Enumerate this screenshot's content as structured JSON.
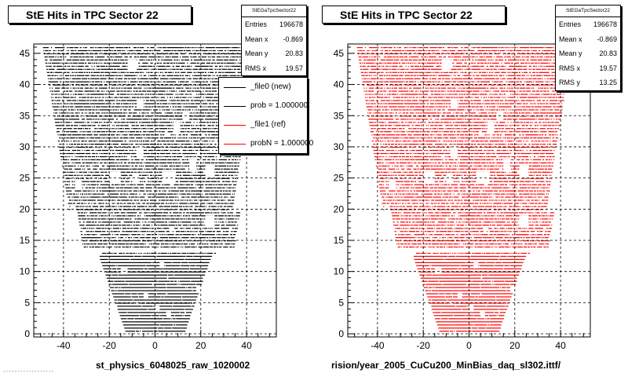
{
  "pads": [
    {
      "title": "StE Hits in TPC Sector 22",
      "stats": {
        "header": "StEGaTpcSector22",
        "rows": [
          {
            "label": "Entries",
            "value": "196678"
          },
          {
            "label": "Mean x",
            "value": "-0.869"
          },
          {
            "label": "Mean y",
            "value": "20.83"
          },
          {
            "label": "RMS x",
            "value": "19.57"
          }
        ]
      },
      "legend": [
        {
          "text": "_file0 (new)",
          "color": "#000000"
        },
        {
          "text": "prob = 1.000000",
          "color": "#000000"
        },
        {
          "text": "_file1 (ref)",
          "color": "#ff0000"
        },
        {
          "text": "probN = 1.000000",
          "color": "#ff0000"
        }
      ],
      "file_label": "st_physics_6048025_raw_1020002"
    },
    {
      "title": "StE Hits in TPC Sector 22",
      "stats": {
        "header": "StEGaTpcSector22",
        "rows": [
          {
            "label": "Entries",
            "value": "196678"
          },
          {
            "label": "Mean x",
            "value": "-0.869"
          },
          {
            "label": "Mean y",
            "value": "20.83"
          },
          {
            "label": "RMS x",
            "value": "19.57"
          },
          {
            "label": "RMS y",
            "value": "13.25"
          }
        ]
      },
      "file_label": "rision/year_2005_CuCu200_MinBias_daq_sl302.ittf/"
    }
  ],
  "chart_data": [
    {
      "type": "scatter",
      "title": "StE Hits in TPC Sector 22",
      "color": "#000000",
      "xlim": [
        -53,
        53
      ],
      "ylim": [
        -0.5,
        46.5
      ],
      "xticks": [
        -40,
        -20,
        0,
        20,
        40
      ],
      "yticks": [
        0,
        5,
        10,
        15,
        20,
        25,
        30,
        35,
        40,
        45
      ],
      "grid": true,
      "legend_position": "top-right",
      "entries": 196678,
      "mean_x": -0.869,
      "mean_y": 20.83,
      "rms_x": 19.57,
      "rms_y": 13.25,
      "row_half_widths": [
        {
          "y": 0.5,
          "half_width": 13
        },
        {
          "y": 13,
          "half_width": 25
        },
        {
          "y": 14,
          "half_width": 33
        },
        {
          "y": 46,
          "half_width": 47
        }
      ],
      "gap_row_y": 13.4
    },
    {
      "type": "scatter",
      "title": "StE Hits in TPC Sector 22",
      "color": "#ff0000",
      "xlim": [
        -53,
        53
      ],
      "ylim": [
        -0.5,
        46.5
      ],
      "xticks": [
        -40,
        -20,
        0,
        20,
        40
      ],
      "yticks": [
        0,
        5,
        10,
        15,
        20,
        25,
        30,
        35,
        40,
        45
      ],
      "grid": true,
      "legend_position": "none",
      "entries": 196678,
      "mean_x": -0.869,
      "mean_y": 20.83,
      "rms_x": 19.57,
      "rms_y": 13.25,
      "row_half_widths": [
        {
          "y": 0.5,
          "half_width": 13
        },
        {
          "y": 13,
          "half_width": 25
        },
        {
          "y": 14,
          "half_width": 33
        },
        {
          "y": 46,
          "half_width": 47
        }
      ],
      "gap_row_y": 13.4
    }
  ]
}
